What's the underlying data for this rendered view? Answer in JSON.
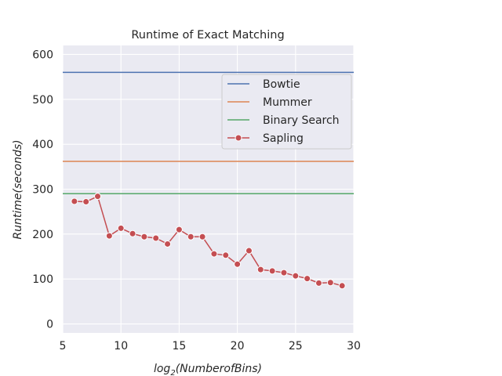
{
  "chart_data": {
    "type": "line",
    "title": "Runtime of Exact Matching",
    "xlabel": "log2(NumberofBins)",
    "ylabel": "Runtime(seconds)",
    "xlim": [
      5,
      30
    ],
    "ylim": [
      -20,
      620
    ],
    "xticks": [
      5,
      10,
      15,
      20,
      25,
      30
    ],
    "yticks": [
      0,
      100,
      200,
      300,
      400,
      500,
      600
    ],
    "grid": true,
    "legend_position": "upper-right",
    "series": [
      {
        "name": "Bowtie",
        "kind": "hline",
        "value": 560,
        "color": "#4c72b0"
      },
      {
        "name": "Mummer",
        "kind": "hline",
        "value": 362,
        "color": "#dd8452"
      },
      {
        "name": "Binary Search",
        "kind": "hline",
        "value": 290,
        "color": "#55a868"
      },
      {
        "name": "Sapling",
        "kind": "line-marker",
        "color": "#c44e52",
        "x": [
          6,
          7,
          8,
          9,
          10,
          11,
          12,
          13,
          14,
          15,
          16,
          17,
          18,
          19,
          20,
          21,
          22,
          23,
          24,
          25,
          26,
          27,
          28,
          29
        ],
        "y": [
          273,
          272,
          284,
          196,
          213,
          201,
          194,
          191,
          178,
          210,
          194,
          194,
          156,
          153,
          133,
          163,
          121,
          118,
          114,
          107,
          101,
          91,
          92,
          85
        ]
      }
    ]
  }
}
